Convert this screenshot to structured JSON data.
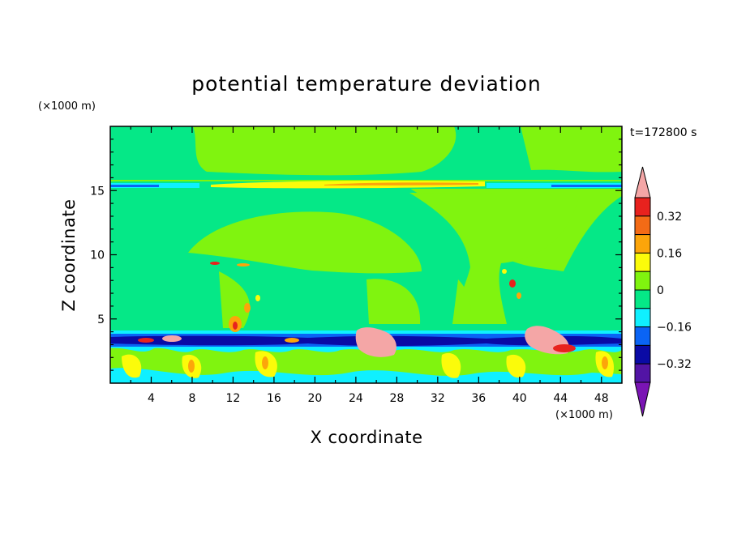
{
  "chart_data": {
    "type": "heatmap",
    "title": "potential temperature deviation",
    "xlabel": "X coordinate",
    "ylabel": "Z coordinate",
    "x_unit": "(×1000 m)",
    "y_unit": "(×1000 m)",
    "time_label": "t=172800 s",
    "xlim": [
      0,
      50
    ],
    "ylim": [
      0,
      20
    ],
    "x_ticks": [
      4,
      8,
      12,
      16,
      20,
      24,
      28,
      32,
      36,
      40,
      44,
      48
    ],
    "y_ticks": [
      5,
      10,
      15
    ],
    "colorbar": {
      "levels": [
        -0.48,
        -0.4,
        -0.32,
        -0.24,
        -0.16,
        -0.08,
        0,
        0.08,
        0.16,
        0.24,
        0.32,
        0.4
      ],
      "tick_values": [
        0.32,
        0.16,
        0,
        -0.16,
        -0.32
      ],
      "tick_labels": [
        "0.32",
        "0.16",
        "0",
        "−0.16",
        "−0.32"
      ],
      "colors_top_to_bottom": [
        "#f4a6a6",
        "#e8221e",
        "#f36b16",
        "#fca50a",
        "#fbfb0a",
        "#80f40f",
        "#05e887",
        "#0ff0ff",
        "#0a64f5",
        "#0a0aa5",
        "#5214a5",
        "#7a14b4"
      ]
    }
  }
}
